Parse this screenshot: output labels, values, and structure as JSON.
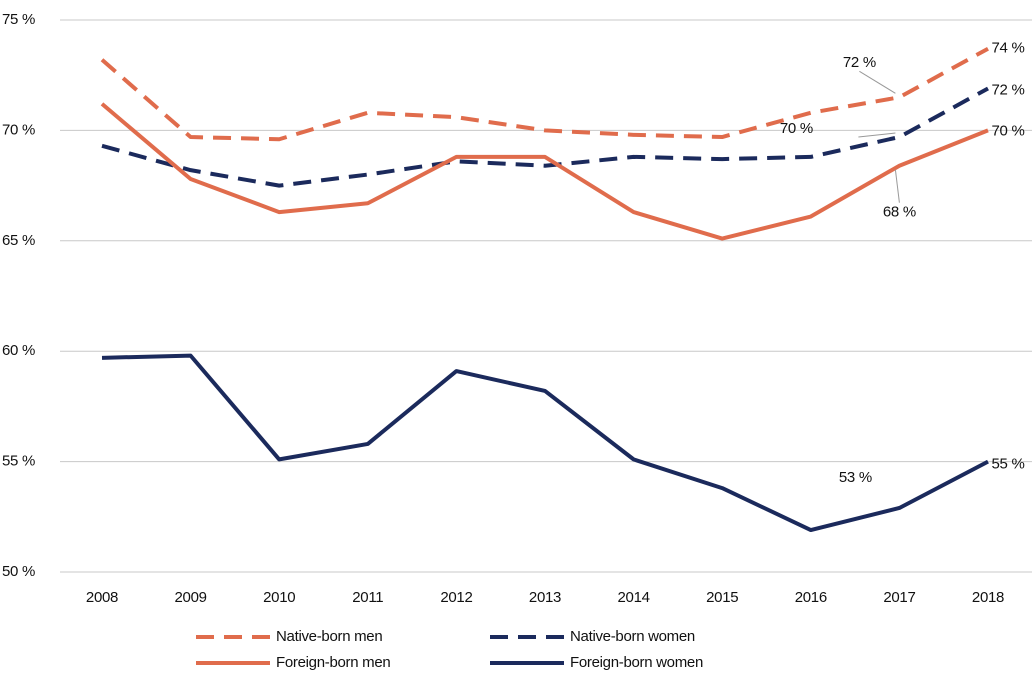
{
  "chart_data": {
    "type": "line",
    "categories": [
      "2008",
      "2009",
      "2010",
      "2011",
      "2012",
      "2013",
      "2014",
      "2015",
      "2016",
      "2017",
      "2018"
    ],
    "ylim": [
      50,
      75
    ],
    "yticks": [
      {
        "value": 50,
        "label": "50 %"
      },
      {
        "value": 55,
        "label": "55 %"
      },
      {
        "value": 60,
        "label": "60 %"
      },
      {
        "value": 65,
        "label": "65 %"
      },
      {
        "value": 70,
        "label": "70 %"
      },
      {
        "value": 75,
        "label": "75 %"
      }
    ],
    "grid": true,
    "series": [
      {
        "name": "Native-born men",
        "color": "#e06c4c",
        "dashed": true,
        "values": [
          73.2,
          69.7,
          69.6,
          70.8,
          70.6,
          70.0,
          69.8,
          69.7,
          70.8,
          71.5,
          73.7
        ],
        "value_labels": [
          null,
          null,
          null,
          null,
          null,
          null,
          null,
          null,
          null,
          "72 %",
          "74 %"
        ]
      },
      {
        "name": "Native-born women",
        "color": "#1b2a5c",
        "dashed": true,
        "values": [
          69.3,
          68.2,
          67.5,
          68.0,
          68.6,
          68.4,
          68.8,
          68.7,
          68.8,
          69.7,
          71.9
        ],
        "value_labels": [
          null,
          null,
          null,
          null,
          null,
          null,
          null,
          null,
          null,
          "70 %",
          "72 %"
        ]
      },
      {
        "name": "Foreign-born men",
        "color": "#e06c4c",
        "dashed": false,
        "values": [
          71.2,
          67.8,
          66.3,
          66.7,
          68.8,
          68.8,
          66.3,
          65.1,
          66.1,
          68.4,
          70.0
        ],
        "value_labels": [
          null,
          null,
          null,
          null,
          null,
          null,
          null,
          null,
          null,
          "68 %",
          "70 %"
        ]
      },
      {
        "name": "Foreign-born women",
        "color": "#1b2a5c",
        "dashed": false,
        "values": [
          59.7,
          59.8,
          55.1,
          55.8,
          59.1,
          58.2,
          55.1,
          53.8,
          51.9,
          52.9,
          55.0
        ],
        "value_labels": [
          null,
          null,
          null,
          null,
          null,
          null,
          null,
          null,
          null,
          "53 %",
          "55 %"
        ]
      }
    ]
  }
}
